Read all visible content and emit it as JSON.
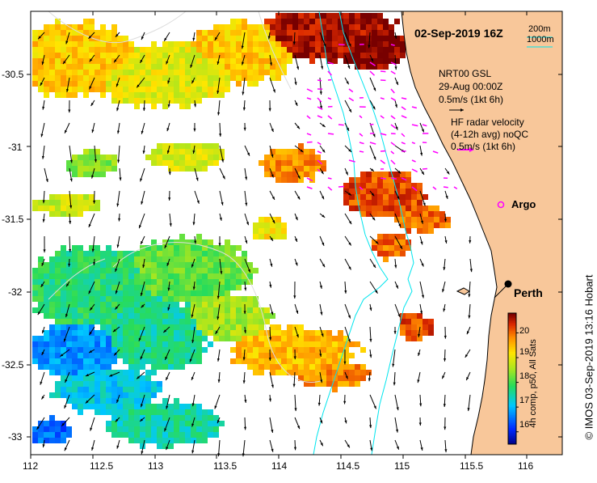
{
  "title": "02-Sep-2019 16Z",
  "scale": {
    "top": "200m",
    "bottom": "1000m"
  },
  "legend": {
    "gsl_title": "NRT00 GSL",
    "gsl_date": "29-Aug 00:00Z",
    "gsl_speed": "0.5m/s (1kt 6h)",
    "hf_title": "HF radar velocity",
    "hf_sub": "(4-12h avg) noQC",
    "hf_speed": "0.5m/s (1kt 6h)"
  },
  "places": {
    "argo": "Argo",
    "perth": "Perth"
  },
  "colorbar": {
    "label": "4h comp, p50, All Sats",
    "ticks": [
      "16",
      "17",
      "18",
      "19",
      "20"
    ],
    "min": 15.5,
    "max": 20.8
  },
  "credit": "© IMOS 03-Sep-2019 13:16 Hobart",
  "axes": {
    "x_ticks": [
      "112",
      "112.5",
      "113",
      "113.5",
      "114",
      "114.5",
      "115",
      "115.5",
      "116"
    ],
    "y_ticks": [
      "-30.5",
      "-31",
      "-31.5",
      "-32",
      "-32.5",
      "-33"
    ]
  },
  "colors": {
    "land": "#f8c79a",
    "coast": "#000000",
    "isobath": "#00e5ee",
    "hf": "#ff00ff",
    "argo": "#ff00ff"
  }
}
